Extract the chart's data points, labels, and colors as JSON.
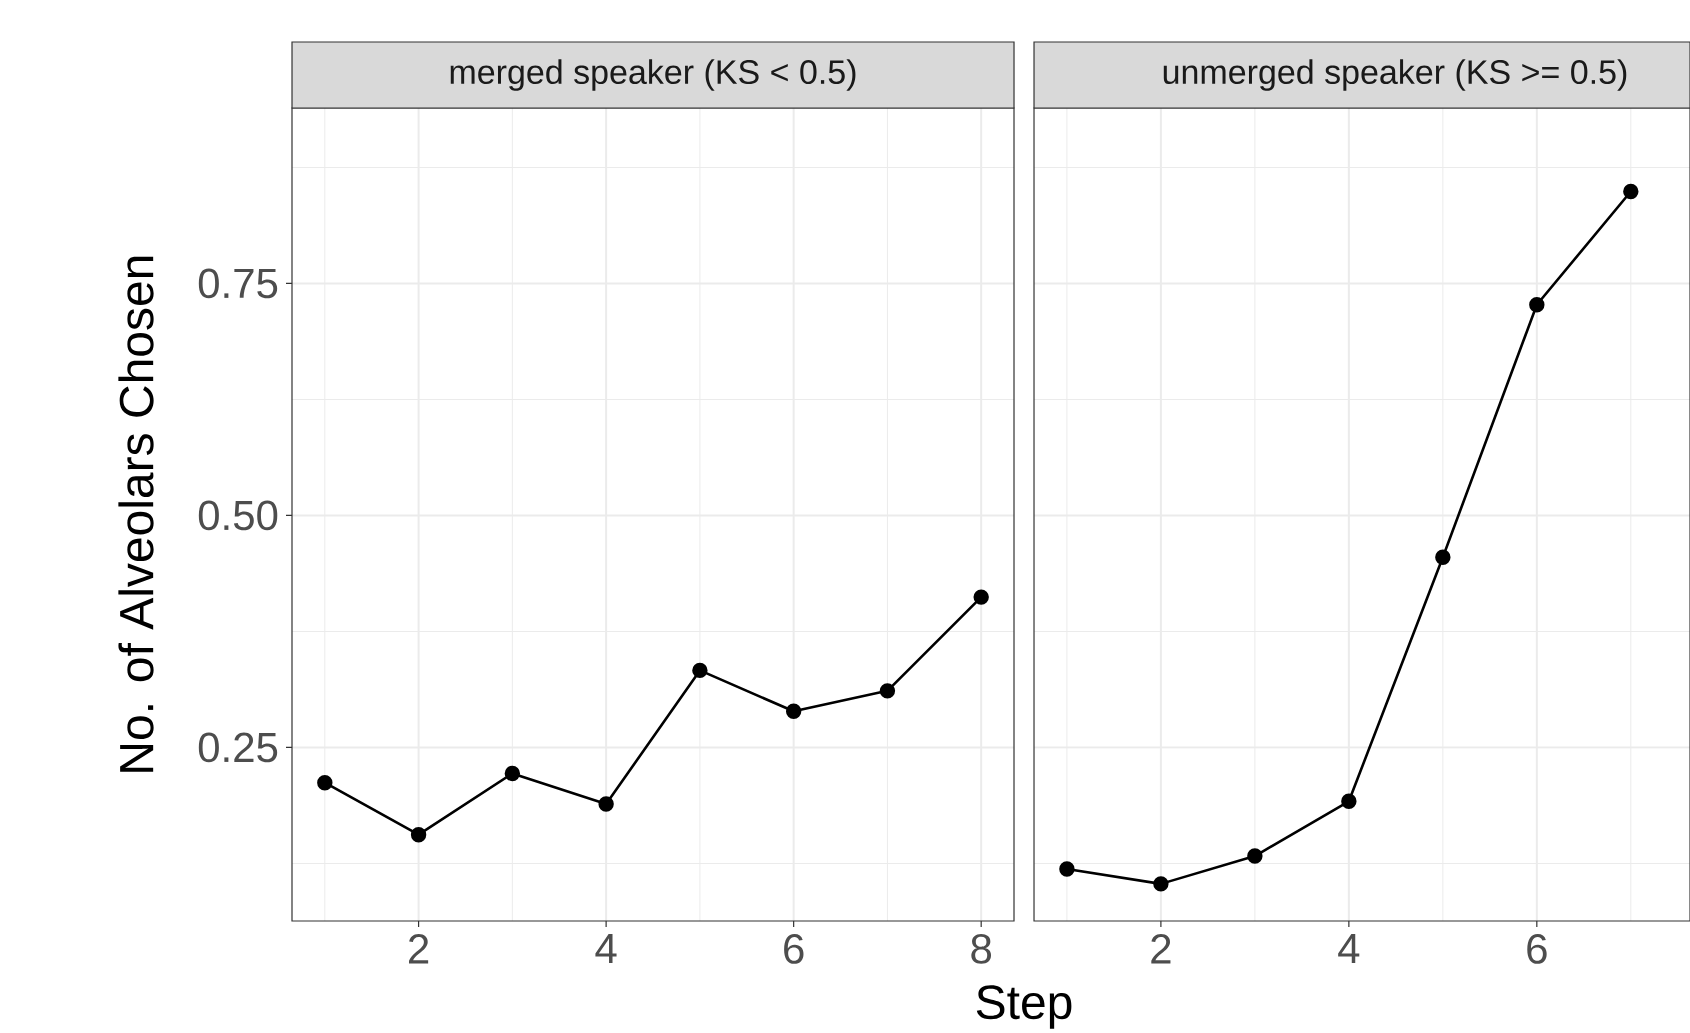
{
  "chart_data": [
    {
      "type": "line",
      "title": "merged speaker (KS < 0.5)",
      "xlabel": "Step",
      "ylabel": "No. of Alveolars Chosen",
      "x": [
        1,
        2,
        3,
        4,
        5,
        6,
        7,
        8
      ],
      "series": [
        {
          "color": "#000000",
          "values": [
            0.212,
            0.156,
            0.222,
            0.189,
            0.333,
            0.289,
            0.311,
            0.412
          ]
        }
      ],
      "xlim": [
        0.65,
        8.35
      ],
      "ylim": [
        0.063,
        0.939
      ],
      "xticks": [
        2,
        4,
        6,
        8
      ],
      "yticks": [
        0.25,
        {
          "value": 0.5,
          "label": "0.50"
        },
        0.75
      ],
      "grid": true,
      "marker": "circle",
      "line_style": "solid"
    },
    {
      "type": "line",
      "title": "unmerged speaker (KS >= 0.5)",
      "x": [
        1,
        2,
        3,
        4,
        5,
        6,
        7
      ],
      "series": [
        {
          "color": "#000000",
          "values": [
            0.119,
            0.103,
            0.133,
            0.192,
            0.455,
            0.727,
            0.849
          ]
        }
      ],
      "xlim": [
        0.65,
        7.63
      ],
      "ylim": [
        0.063,
        0.939
      ],
      "xticks": [
        2,
        4,
        6
      ],
      "yticks": [
        0.25,
        0.5,
        0.75
      ],
      "grid": true,
      "marker": "circle",
      "line_style": "solid",
      "tick_labels": "x"
    }
  ]
}
